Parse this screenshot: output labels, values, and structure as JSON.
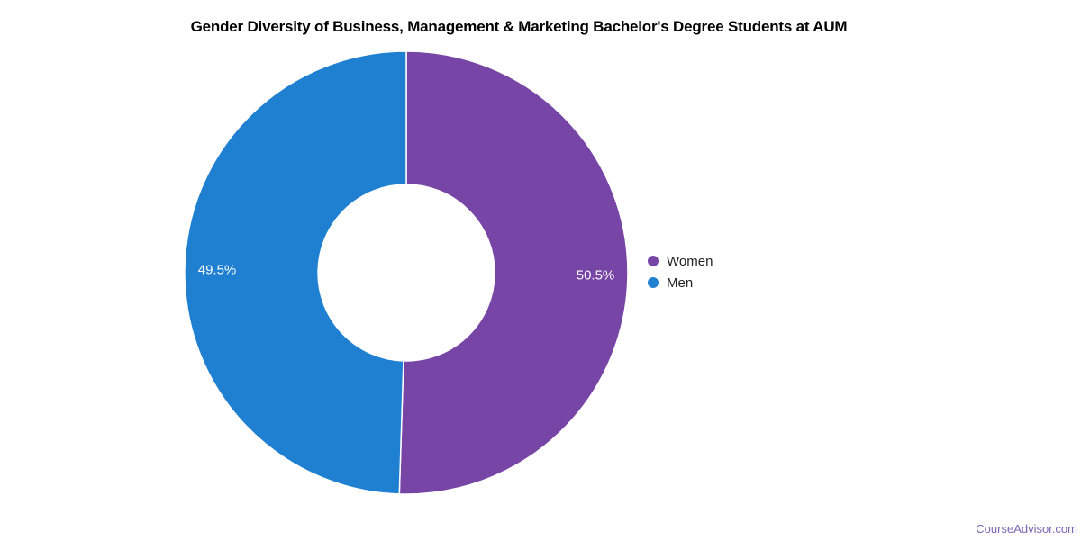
{
  "chart_data": {
    "type": "pie",
    "subtype": "donut",
    "title": "Gender Diversity of Business, Management & Marketing Bachelor's Degree Students at AUM",
    "series": [
      {
        "name": "Women",
        "value": 50.5,
        "label": "50.5%",
        "color": "#7745a5"
      },
      {
        "name": "Men",
        "value": 49.5,
        "label": "49.5%",
        "color": "#1f80d1"
      }
    ],
    "start_angle_deg": 0,
    "direction": "clockwise",
    "legend_position": "right",
    "slice_border_color": "#ffffff",
    "center": [
      451,
      303
    ],
    "outer_radius": 246,
    "inner_radius": 98,
    "label_radius": 210
  },
  "legend": {
    "items": [
      {
        "label": "Women"
      },
      {
        "label": "Men"
      }
    ]
  },
  "watermark": {
    "label": "CourseAdvisor.com"
  }
}
